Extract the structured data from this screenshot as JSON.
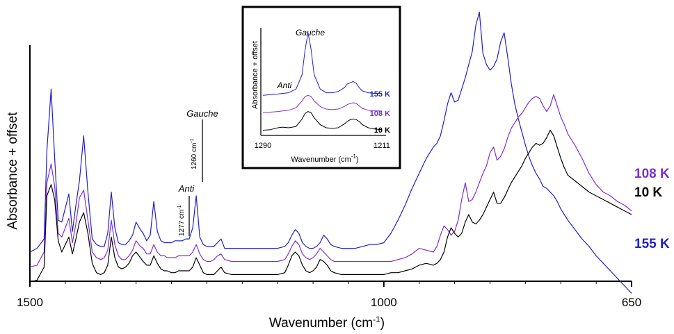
{
  "chart_data": [
    {
      "type": "line",
      "title": "",
      "xlabel": "Wavenumber (cm⁻¹)",
      "ylabel": "Absorbance + offset",
      "xlim": [
        1500,
        650
      ],
      "x_ticks": [
        "1500",
        "1000",
        "650"
      ],
      "grid": false,
      "annotations": [
        {
          "text": "Gauche",
          "position_cm": 1260
        },
        {
          "text": "1260 cm⁻¹",
          "position_cm": 1260
        },
        {
          "text": "Anti",
          "position_cm": 1277
        },
        {
          "text": "1277 cm⁻¹",
          "position_cm": 1277
        }
      ],
      "series": [
        {
          "name": "155 K",
          "color": "#1f1fcf",
          "x": [
            1500,
            1490,
            1480,
            1476,
            1470,
            1465,
            1460,
            1455,
            1445,
            1440,
            1435,
            1430,
            1424,
            1418,
            1412,
            1406,
            1400,
            1395,
            1390,
            1385,
            1380,
            1375,
            1370,
            1365,
            1360,
            1355,
            1350,
            1344,
            1340,
            1335,
            1330,
            1325,
            1320,
            1315,
            1310,
            1306,
            1300,
            1295,
            1290,
            1285,
            1280,
            1275,
            1270,
            1265,
            1260,
            1255,
            1250,
            1245,
            1240,
            1235,
            1230,
            1225,
            1215,
            1200,
            1180,
            1160,
            1150,
            1140,
            1135,
            1130,
            1125,
            1120,
            1115,
            1110,
            1105,
            1100,
            1095,
            1090,
            1085,
            1080,
            1075,
            1070,
            1060,
            1050,
            1040,
            1030,
            1020,
            1010,
            1000,
            990,
            980,
            970,
            960,
            950,
            940,
            930,
            925,
            920,
            915,
            910,
            905,
            900,
            895,
            890,
            885,
            880,
            875,
            870,
            865,
            860,
            855,
            850,
            845,
            840,
            835,
            830,
            825,
            820,
            815,
            810,
            805,
            800,
            795,
            790,
            785,
            780,
            775,
            770,
            765,
            760,
            755,
            750,
            745,
            740,
            730,
            720,
            710,
            700,
            690,
            680,
            670,
            660,
            650
          ],
          "values": [
            0.1,
            0.12,
            0.17,
            0.64,
            0.97,
            0.6,
            0.27,
            0.26,
            0.41,
            0.21,
            0.35,
            0.48,
            0.72,
            0.42,
            0.17,
            0.14,
            0.13,
            0.13,
            0.2,
            0.42,
            0.23,
            0.15,
            0.14,
            0.14,
            0.16,
            0.19,
            0.26,
            0.22,
            0.2,
            0.16,
            0.19,
            0.37,
            0.21,
            0.16,
            0.15,
            0.15,
            0.15,
            0.16,
            0.16,
            0.16,
            0.17,
            0.17,
            0.23,
            0.4,
            0.18,
            0.14,
            0.13,
            0.13,
            0.13,
            0.15,
            0.17,
            0.12,
            0.12,
            0.12,
            0.12,
            0.12,
            0.12,
            0.13,
            0.15,
            0.19,
            0.22,
            0.2,
            0.15,
            0.13,
            0.12,
            0.12,
            0.13,
            0.15,
            0.19,
            0.17,
            0.14,
            0.13,
            0.12,
            0.12,
            0.12,
            0.13,
            0.14,
            0.14,
            0.15,
            0.2,
            0.27,
            0.35,
            0.44,
            0.52,
            0.6,
            0.66,
            0.68,
            0.72,
            0.8,
            0.89,
            0.95,
            0.9,
            0.91,
            0.97,
            1.03,
            1.1,
            1.17,
            1.31,
            1.38,
            1.16,
            1.1,
            1.07,
            1.09,
            1.13,
            1.22,
            1.27,
            1.14,
            1.0,
            0.89,
            0.81,
            0.74,
            0.67,
            0.61,
            0.56,
            0.52,
            0.49,
            0.45,
            0.44,
            0.42,
            0.4,
            0.37,
            0.33,
            0.3,
            0.27,
            0.22,
            0.17,
            0.13,
            0.08,
            0.04,
            0.0,
            -0.04,
            -0.08,
            -0.12
          ],
          "label_y": 0.0
        },
        {
          "name": "108 K",
          "color": "#7b2fd6",
          "x": [
            1500,
            1490,
            1480,
            1476,
            1470,
            1465,
            1460,
            1455,
            1445,
            1440,
            1435,
            1430,
            1424,
            1418,
            1412,
            1406,
            1400,
            1395,
            1390,
            1385,
            1380,
            1375,
            1370,
            1365,
            1360,
            1355,
            1350,
            1344,
            1340,
            1335,
            1330,
            1325,
            1320,
            1315,
            1310,
            1306,
            1300,
            1295,
            1290,
            1285,
            1280,
            1275,
            1270,
            1265,
            1260,
            1255,
            1250,
            1245,
            1240,
            1235,
            1230,
            1225,
            1215,
            1200,
            1180,
            1160,
            1150,
            1140,
            1135,
            1130,
            1125,
            1120,
            1115,
            1110,
            1105,
            1100,
            1095,
            1090,
            1085,
            1080,
            1075,
            1070,
            1060,
            1050,
            1040,
            1030,
            1020,
            1010,
            1000,
            990,
            980,
            970,
            960,
            950,
            940,
            930,
            925,
            920,
            915,
            910,
            905,
            900,
            895,
            890,
            885,
            880,
            875,
            870,
            865,
            860,
            855,
            850,
            845,
            840,
            835,
            830,
            825,
            820,
            815,
            810,
            805,
            800,
            795,
            790,
            785,
            780,
            775,
            770,
            765,
            760,
            755,
            750,
            745,
            740,
            730,
            720,
            710,
            700,
            690,
            680,
            670,
            660,
            650
          ],
          "values": [
            0.02,
            0.03,
            0.1,
            0.47,
            0.57,
            0.45,
            0.2,
            0.18,
            0.28,
            0.15,
            0.25,
            0.39,
            0.43,
            0.27,
            0.1,
            0.07,
            0.06,
            0.07,
            0.11,
            0.27,
            0.14,
            0.08,
            0.06,
            0.06,
            0.08,
            0.11,
            0.16,
            0.13,
            0.12,
            0.09,
            0.09,
            0.14,
            0.1,
            0.08,
            0.08,
            0.07,
            0.07,
            0.07,
            0.08,
            0.08,
            0.08,
            0.08,
            0.1,
            0.14,
            0.09,
            0.06,
            0.05,
            0.05,
            0.06,
            0.08,
            0.09,
            0.06,
            0.05,
            0.05,
            0.05,
            0.05,
            0.05,
            0.06,
            0.09,
            0.13,
            0.16,
            0.14,
            0.09,
            0.07,
            0.06,
            0.07,
            0.09,
            0.12,
            0.1,
            0.08,
            0.06,
            0.05,
            0.05,
            0.05,
            0.05,
            0.05,
            0.05,
            0.05,
            0.05,
            0.05,
            0.06,
            0.07,
            0.09,
            0.12,
            0.11,
            0.1,
            0.13,
            0.19,
            0.24,
            0.22,
            0.19,
            0.21,
            0.27,
            0.38,
            0.47,
            0.37,
            0.38,
            0.42,
            0.47,
            0.52,
            0.56,
            0.63,
            0.66,
            0.59,
            0.61,
            0.65,
            0.71,
            0.76,
            0.79,
            0.82,
            0.84,
            0.87,
            0.9,
            0.92,
            0.93,
            0.92,
            0.88,
            0.85,
            0.88,
            0.94,
            0.88,
            0.82,
            0.78,
            0.73,
            0.67,
            0.6,
            0.52,
            0.46,
            0.42,
            0.4,
            0.37,
            0.35,
            0.32
          ],
          "label_y": 0.37
        },
        {
          "name": "10 K",
          "color": "#000000",
          "x": [
            1500,
            1490,
            1480,
            1476,
            1470,
            1465,
            1460,
            1455,
            1445,
            1440,
            1435,
            1430,
            1424,
            1418,
            1412,
            1406,
            1400,
            1395,
            1390,
            1385,
            1380,
            1375,
            1370,
            1365,
            1360,
            1355,
            1350,
            1344,
            1340,
            1335,
            1330,
            1325,
            1320,
            1315,
            1310,
            1306,
            1300,
            1295,
            1290,
            1285,
            1280,
            1275,
            1270,
            1265,
            1260,
            1255,
            1250,
            1245,
            1240,
            1235,
            1230,
            1225,
            1215,
            1200,
            1180,
            1160,
            1150,
            1140,
            1135,
            1130,
            1125,
            1120,
            1115,
            1110,
            1105,
            1100,
            1095,
            1090,
            1085,
            1080,
            1075,
            1070,
            1060,
            1050,
            1040,
            1030,
            1020,
            1010,
            1000,
            990,
            980,
            970,
            960,
            950,
            940,
            930,
            925,
            920,
            915,
            910,
            905,
            900,
            895,
            890,
            885,
            880,
            875,
            870,
            865,
            860,
            855,
            850,
            845,
            840,
            835,
            830,
            825,
            820,
            815,
            810,
            805,
            800,
            795,
            790,
            785,
            780,
            775,
            770,
            765,
            760,
            755,
            750,
            745,
            740,
            730,
            720,
            710,
            700,
            690,
            680,
            670,
            660,
            650
          ],
          "values": [
            -0.06,
            -0.05,
            0.02,
            0.4,
            0.46,
            0.38,
            0.16,
            0.1,
            0.18,
            0.09,
            0.17,
            0.26,
            0.31,
            0.2,
            0.04,
            -0.01,
            -0.02,
            -0.01,
            0.03,
            0.18,
            0.07,
            0.02,
            0.01,
            0.02,
            0.04,
            0.08,
            0.1,
            0.07,
            0.05,
            0.03,
            0.03,
            0.08,
            0.04,
            0.01,
            0.0,
            0.0,
            -0.01,
            -0.01,
            0.0,
            0.0,
            0.0,
            0.0,
            0.02,
            0.07,
            0.03,
            -0.01,
            -0.02,
            -0.02,
            -0.02,
            0.0,
            0.02,
            -0.01,
            -0.02,
            -0.02,
            -0.02,
            -0.02,
            -0.02,
            -0.01,
            0.03,
            0.08,
            0.1,
            0.08,
            0.03,
            0.0,
            -0.01,
            0.0,
            0.02,
            0.06,
            0.05,
            0.03,
            0.0,
            -0.01,
            -0.02,
            -0.02,
            -0.02,
            -0.02,
            -0.02,
            -0.02,
            -0.02,
            -0.01,
            -0.01,
            0.0,
            0.01,
            0.03,
            0.04,
            0.03,
            0.04,
            0.06,
            0.1,
            0.18,
            0.23,
            0.2,
            0.18,
            0.2,
            0.26,
            0.3,
            0.26,
            0.25,
            0.27,
            0.3,
            0.34,
            0.38,
            0.42,
            0.36,
            0.36,
            0.39,
            0.43,
            0.47,
            0.5,
            0.53,
            0.56,
            0.6,
            0.63,
            0.66,
            0.68,
            0.67,
            0.68,
            0.71,
            0.75,
            0.72,
            0.66,
            0.6,
            0.55,
            0.51,
            0.48,
            0.45,
            0.42,
            0.4,
            0.38,
            0.36,
            0.34,
            0.32,
            0.3
          ],
          "label_y": 0.25
        }
      ]
    },
    {
      "type": "line",
      "title": "",
      "xlabel": "Wavenumber (cm⁻¹)",
      "ylabel": "Absorbance + offset",
      "xlim": [
        1290,
        1211
      ],
      "x_ticks": [
        "1290",
        "1211"
      ],
      "grid": false,
      "annotations": [
        {
          "text": "Gauche",
          "position_cm": 1260
        },
        {
          "text": "Anti",
          "position_cm": 1277
        }
      ],
      "series": [
        {
          "name": "155 K",
          "color": "#1f1fcf",
          "x": [
            1290,
            1285,
            1280,
            1277,
            1273,
            1268,
            1264,
            1262,
            1260,
            1258,
            1256,
            1252,
            1248,
            1244,
            1240,
            1236,
            1234,
            1232,
            1230,
            1228,
            1226,
            1224,
            1220,
            1216,
            1211
          ],
          "values": [
            0.62,
            0.63,
            0.64,
            0.65,
            0.66,
            0.72,
            0.95,
            1.35,
            1.62,
            1.35,
            0.95,
            0.72,
            0.66,
            0.66,
            0.68,
            0.74,
            0.8,
            0.82,
            0.84,
            0.81,
            0.74,
            0.69,
            0.66,
            0.65,
            0.65
          ],
          "label_y": 0.64
        },
        {
          "name": "108 K",
          "color": "#7b2fd6",
          "x": [
            1290,
            1285,
            1280,
            1277,
            1273,
            1268,
            1264,
            1262,
            1260,
            1258,
            1256,
            1252,
            1248,
            1244,
            1240,
            1236,
            1234,
            1232,
            1230,
            1228,
            1226,
            1224,
            1220,
            1216,
            1211
          ],
          "values": [
            0.35,
            0.35,
            0.36,
            0.37,
            0.38,
            0.42,
            0.53,
            0.6,
            0.62,
            0.6,
            0.53,
            0.44,
            0.4,
            0.39,
            0.4,
            0.44,
            0.47,
            0.49,
            0.5,
            0.49,
            0.45,
            0.41,
            0.38,
            0.37,
            0.37
          ],
          "label_y": 0.38
        },
        {
          "name": "10 K",
          "color": "#000000",
          "x": [
            1290,
            1285,
            1280,
            1277,
            1273,
            1268,
            1264,
            1262,
            1260,
            1258,
            1256,
            1252,
            1248,
            1244,
            1240,
            1236,
            1234,
            1232,
            1230,
            1228,
            1226,
            1224,
            1220,
            1216,
            1211
          ],
          "values": [
            0.06,
            0.07,
            0.1,
            0.11,
            0.1,
            0.12,
            0.24,
            0.33,
            0.36,
            0.34,
            0.26,
            0.15,
            0.1,
            0.09,
            0.1,
            0.16,
            0.2,
            0.23,
            0.24,
            0.23,
            0.2,
            0.15,
            0.1,
            0.08,
            0.07
          ],
          "label_y": 0.09
        }
      ]
    }
  ]
}
